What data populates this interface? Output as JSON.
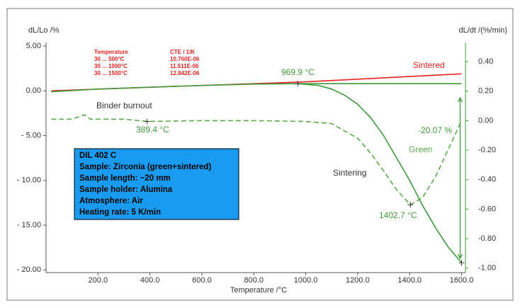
{
  "chart_data": {
    "type": "line",
    "ylabel": "dL/Lo /%",
    "y2label": "dL/dt /(%/min)",
    "xlabel": "Temperature /°C",
    "xlim": [
      0,
      1615
    ],
    "ylim": [
      -20.3,
      5.4
    ],
    "y2lim": [
      -1.03,
      0.53
    ],
    "xticks": [
      {
        "value": 200,
        "label": "200.0"
      },
      {
        "value": 400,
        "label": "400.0"
      },
      {
        "value": 600,
        "label": "600.0"
      },
      {
        "value": 800,
        "label": "800.0"
      },
      {
        "value": 1000,
        "label": "1000.0"
      },
      {
        "value": 1200,
        "label": "1200.0"
      },
      {
        "value": 1400,
        "label": "1400.0"
      },
      {
        "value": 1600,
        "label": "1600.0"
      }
    ],
    "yticks": [
      {
        "value": 5,
        "label": "5.00"
      },
      {
        "value": 0,
        "label": "0.00"
      },
      {
        "value": -5,
        "label": "- 5.00"
      },
      {
        "value": -10,
        "label": "- 10.00"
      },
      {
        "value": -15,
        "label": "- 15.00"
      },
      {
        "value": -20,
        "label": "- 20.00"
      }
    ],
    "y2ticks": [
      {
        "value": 0.4,
        "label": "0.40"
      },
      {
        "value": 0.2,
        "label": "0.20"
      },
      {
        "value": 0,
        "label": "0.00"
      },
      {
        "value": -0.2,
        "label": "-0.20"
      },
      {
        "value": -0.4,
        "label": "-0.40"
      },
      {
        "value": -0.6,
        "label": "-0.60"
      },
      {
        "value": -0.8,
        "label": "-0.80"
      },
      {
        "value": -1,
        "label": "-1.00"
      }
    ],
    "series": [
      {
        "name": "Sintered",
        "color": "#e8231f",
        "x": [
          20,
          400,
          800,
          1000,
          1200,
          1400,
          1600
        ],
        "values": [
          0,
          0.4,
          0.8,
          1.0,
          1.3,
          1.6,
          1.9
        ]
      },
      {
        "color": "#3f9b3a",
        "x": [
          20,
          200,
          400,
          600,
          800,
          969.9,
          1050,
          1100,
          1150,
          1200,
          1250,
          1300,
          1350,
          1400,
          1450,
          1500,
          1550,
          1600
        ],
        "values": [
          -0.1,
          0.2,
          0.4,
          0.6,
          0.75,
          0.8,
          0.6,
          0.2,
          -0.5,
          -1.5,
          -3,
          -5,
          -7.5,
          -10,
          -12.8,
          -15.3,
          -17.5,
          -19.2
        ]
      },
      {
        "color": "#3f9b3a",
        "x": [
          969.9,
          1600
        ],
        "values": [
          0.8,
          0.8
        ]
      },
      {
        "name": "Green",
        "color": "#5aaa4a",
        "axis": "y2",
        "dashed": true,
        "x": [
          20,
          100,
          150,
          170,
          300,
          389.4,
          600,
          800,
          1000,
          1100,
          1200,
          1250,
          1300,
          1350,
          1402.7,
          1450,
          1500,
          1550,
          1600
        ],
        "values": [
          0.01,
          0.01,
          0.04,
          0.01,
          0.01,
          -0.005,
          0,
          0,
          -0.005,
          -0.02,
          -0.12,
          -0.22,
          -0.34,
          -0.47,
          -0.57,
          -0.52,
          -0.38,
          -0.19,
          0
        ]
      }
    ],
    "annotations": [
      "969.9 °C",
      "389.4 °C",
      "1402.7 °C",
      "-20.07 %",
      "Binder burnout",
      "Sintering"
    ],
    "cte_table": {
      "header": [
        "Temperature",
        "CTE / 1/K"
      ],
      "rows": [
        [
          "30 ... 500°C",
          "10.760E-06"
        ],
        [
          "30 ... 1000°C",
          "11.511E-06"
        ],
        [
          "30 ... 1500°C",
          "12.842E-06"
        ]
      ]
    },
    "info_box": [
      "DIL 402 C",
      "Sample: Zirconia (green+sintered)",
      "Sample length: ~20 mm",
      "Sample holder: Alumina",
      "Atmosphere: Air",
      "Heating rate: 5 K/min"
    ]
  }
}
